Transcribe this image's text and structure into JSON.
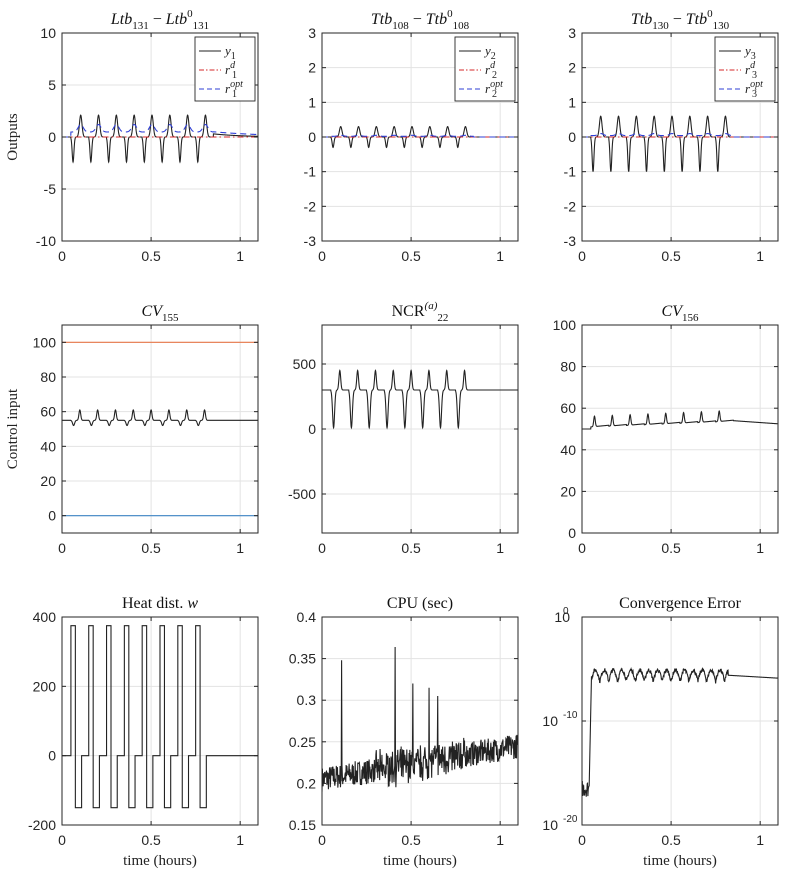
{
  "colors": {
    "black": "#222222",
    "red_dashdot": "#d62728",
    "blue_dashed": "#2f3fd6",
    "orange": "#e8784a",
    "steelblue": "#3f86c6",
    "grid": "#e3e3e3"
  },
  "chart_data": [
    {
      "id": "p1",
      "type": "line",
      "title": "Ltb131 − Ltb0131",
      "title_parts": [
        {
          "t": "Ltb",
          "i": true
        },
        {
          "t": "131",
          "sub": true
        },
        {
          "t": " − "
        },
        {
          "t": "Ltb",
          "i": true
        },
        {
          "t": "0",
          "sup": true
        },
        {
          "t": "131",
          "sub": true
        }
      ],
      "ylabel": "Outputs",
      "xlabel": "",
      "xlim": [
        0,
        1.1
      ],
      "ylim": [
        -10,
        10
      ],
      "yscale": "linear",
      "xticks": [
        0,
        0.5,
        1
      ],
      "xtick_labels": [
        "0",
        "0.5",
        "1"
      ],
      "yticks": [
        -10,
        -5,
        0,
        5,
        10
      ],
      "ytick_labels": [
        "-10",
        "-5",
        "0",
        "5",
        "10"
      ],
      "legend": {
        "position": "top-right",
        "entries": [
          {
            "label": "y1",
            "base": "y",
            "sub": "1",
            "series": "y1"
          },
          {
            "label": "r1d",
            "base": "r",
            "sub": "1",
            "sup": "d",
            "series": "rd"
          },
          {
            "label": "r1opt",
            "base": "r",
            "sub": "1",
            "sup": "opt",
            "series": "ropt"
          }
        ]
      },
      "series": [
        {
          "id": "y1",
          "name": "y1",
          "color": "black",
          "dash": "",
          "gen": "osc_y",
          "params": {
            "peak": 2.1,
            "trough": -2.4,
            "settle": 0.3
          }
        },
        {
          "id": "rd",
          "name": "r1d",
          "color": "red_dashdot",
          "dash": "6,3,1.5,3",
          "gen": "const",
          "params": {
            "value": 0
          }
        },
        {
          "id": "ropt",
          "name": "r1opt",
          "color": "blue_dashed",
          "dash": "6,4",
          "gen": "osc_ropt",
          "params": {
            "amp": 1.2,
            "settle": 0.5
          }
        }
      ]
    },
    {
      "id": "p2",
      "type": "line",
      "title": "Ttb108 − Ttb0108",
      "title_parts": [
        {
          "t": "Ttb",
          "i": true
        },
        {
          "t": "108",
          "sub": true
        },
        {
          "t": " − "
        },
        {
          "t": "Ttb",
          "i": true
        },
        {
          "t": "0",
          "sup": true
        },
        {
          "t": "108",
          "sub": true
        }
      ],
      "ylabel": "",
      "xlabel": "",
      "xlim": [
        0,
        1.1
      ],
      "ylim": [
        -3,
        3
      ],
      "yscale": "linear",
      "xticks": [
        0,
        0.5,
        1
      ],
      "xtick_labels": [
        "0",
        "0.5",
        "1"
      ],
      "yticks": [
        -3,
        -2,
        -1,
        0,
        1,
        2,
        3
      ],
      "ytick_labels": [
        "-3",
        "-2",
        "-1",
        "0",
        "1",
        "2",
        "3"
      ],
      "legend": {
        "position": "top-right",
        "entries": [
          {
            "label": "y2",
            "base": "y",
            "sub": "2",
            "series": "y2"
          },
          {
            "label": "r2d",
            "base": "r",
            "sub": "2",
            "sup": "d",
            "series": "rd"
          },
          {
            "label": "r2opt",
            "base": "r",
            "sub": "2",
            "sup": "opt",
            "series": "ropt"
          }
        ]
      },
      "series": [
        {
          "id": "y2",
          "name": "y2",
          "color": "black",
          "dash": "",
          "gen": "osc_y",
          "params": {
            "peak": 0.3,
            "trough": -0.3,
            "settle": 0.0
          }
        },
        {
          "id": "rd",
          "name": "r2d",
          "color": "red_dashdot",
          "dash": "6,3,1.5,3",
          "gen": "const",
          "params": {
            "value": 0
          }
        },
        {
          "id": "ropt",
          "name": "r2opt",
          "color": "blue_dashed",
          "dash": "6,4",
          "gen": "osc_ropt",
          "params": {
            "amp": 0.05,
            "settle": 0.0
          }
        }
      ]
    },
    {
      "id": "p3",
      "type": "line",
      "title": "Ttb130 − Ttb0130",
      "title_parts": [
        {
          "t": "Ttb",
          "i": true
        },
        {
          "t": "130",
          "sub": true
        },
        {
          "t": " − "
        },
        {
          "t": "Ttb",
          "i": true
        },
        {
          "t": "0",
          "sup": true
        },
        {
          "t": "130",
          "sub": true
        }
      ],
      "ylabel": "",
      "xlabel": "",
      "xlim": [
        0,
        1.1
      ],
      "ylim": [
        -3,
        3
      ],
      "yscale": "linear",
      "xticks": [
        0,
        0.5,
        1
      ],
      "xtick_labels": [
        "0",
        "0.5",
        "1"
      ],
      "yticks": [
        -3,
        -2,
        -1,
        0,
        1,
        2,
        3
      ],
      "ytick_labels": [
        "-3",
        "-2",
        "-1",
        "0",
        "1",
        "2",
        "3"
      ],
      "legend": {
        "position": "top-right",
        "entries": [
          {
            "label": "y3",
            "base": "y",
            "sub": "3",
            "series": "y3"
          },
          {
            "label": "r3d",
            "base": "r",
            "sub": "3",
            "sup": "d",
            "series": "rd"
          },
          {
            "label": "r3opt",
            "base": "r",
            "sub": "3",
            "sup": "opt",
            "series": "ropt"
          }
        ]
      },
      "series": [
        {
          "id": "y3",
          "name": "y3",
          "color": "black",
          "dash": "",
          "gen": "osc_y",
          "params": {
            "peak": 0.6,
            "trough": -1.0,
            "settle": 0.0
          }
        },
        {
          "id": "rd",
          "name": "r3d",
          "color": "red_dashdot",
          "dash": "6,3,1.5,3",
          "gen": "const",
          "params": {
            "value": 0
          }
        },
        {
          "id": "ropt",
          "name": "r3opt",
          "color": "blue_dashed",
          "dash": "6,4",
          "gen": "osc_ropt",
          "params": {
            "amp": 0.1,
            "settle": 0.0
          }
        }
      ]
    },
    {
      "id": "p4",
      "type": "line",
      "title": "CV155",
      "title_parts": [
        {
          "t": "CV",
          "i": true
        },
        {
          "t": "155",
          "sub": true
        }
      ],
      "ylabel": "Control input",
      "xlabel": "",
      "xlim": [
        0,
        1.1
      ],
      "ylim": [
        -10,
        110
      ],
      "yscale": "linear",
      "xticks": [
        0,
        0.5,
        1
      ],
      "xtick_labels": [
        "0",
        "0.5",
        "1"
      ],
      "yticks": [
        0,
        20,
        40,
        60,
        80,
        100
      ],
      "ytick_labels": [
        "0",
        "20",
        "40",
        "60",
        "80",
        "100"
      ],
      "legend": null,
      "series": [
        {
          "id": "ub",
          "name": "upper bound",
          "color": "orange",
          "dash": "",
          "gen": "const",
          "params": {
            "value": 100
          }
        },
        {
          "id": "lb",
          "name": "lower bound",
          "color": "steelblue",
          "dash": "",
          "gen": "const",
          "params": {
            "value": 0
          }
        },
        {
          "id": "u",
          "name": "CV155",
          "color": "black",
          "dash": "",
          "gen": "osc_u",
          "params": {
            "base": 55,
            "peak": 61,
            "trough": 52,
            "drift": 0
          }
        }
      ]
    },
    {
      "id": "p5",
      "type": "line",
      "title": "NCR(a)22",
      "title_parts": [
        {
          "t": "NCR"
        },
        {
          "t": "(a)",
          "sup": true,
          "i": true
        },
        {
          "t": "22",
          "sub": true
        }
      ],
      "ylabel": "",
      "xlabel": "",
      "xlim": [
        0,
        1.1
      ],
      "ylim": [
        -800,
        800
      ],
      "yscale": "linear",
      "xticks": [
        0,
        0.5,
        1
      ],
      "xtick_labels": [
        "0",
        "0.5",
        "1"
      ],
      "yticks": [
        -500,
        0,
        500
      ],
      "ytick_labels": [
        "-500",
        "0",
        "500"
      ],
      "legend": null,
      "series": [
        {
          "id": "u",
          "name": "NCR22",
          "color": "black",
          "dash": "",
          "gen": "osc_u",
          "params": {
            "base": 300,
            "peak": 450,
            "trough": 10,
            "drift": 0
          }
        }
      ]
    },
    {
      "id": "p6",
      "type": "line",
      "title": "CV156",
      "title_parts": [
        {
          "t": "CV",
          "i": true
        },
        {
          "t": "156",
          "sub": true
        }
      ],
      "ylabel": "",
      "xlabel": "",
      "xlim": [
        0,
        1.1
      ],
      "ylim": [
        0,
        100
      ],
      "yscale": "linear",
      "xticks": [
        0,
        0.5,
        1
      ],
      "xtick_labels": [
        "0",
        "0.5",
        "1"
      ],
      "yticks": [
        0,
        20,
        40,
        60,
        80,
        100
      ],
      "ytick_labels": [
        "0",
        "20",
        "40",
        "60",
        "80",
        "100"
      ],
      "legend": null,
      "series": [
        {
          "id": "ub",
          "name": "upper bound",
          "color": "orange",
          "dash": "",
          "gen": "const",
          "params": {
            "value": 100
          }
        },
        {
          "id": "lb",
          "name": "lower bound",
          "color": "steelblue",
          "dash": "",
          "gen": "const",
          "params": {
            "value": 0
          }
        },
        {
          "id": "u",
          "name": "CV156",
          "color": "black",
          "dash": "",
          "gen": "osc_u6",
          "params": {
            "base": 50,
            "peak": 56,
            "end": 52
          }
        }
      ]
    },
    {
      "id": "p7",
      "type": "line",
      "title": "Heat dist. w",
      "title_parts": [
        {
          "t": "Heat dist. "
        },
        {
          "t": "w",
          "i": true
        }
      ],
      "ylabel": "",
      "xlabel": "time (hours)",
      "xlim": [
        0,
        1.1
      ],
      "ylim": [
        -200,
        400
      ],
      "yscale": "linear",
      "xticks": [
        0,
        0.5,
        1
      ],
      "xtick_labels": [
        "0",
        "0.5",
        "1"
      ],
      "yticks": [
        -200,
        0,
        200,
        400
      ],
      "ytick_labels": [
        "-200",
        "0",
        "200",
        "400"
      ],
      "legend": null,
      "series": [
        {
          "id": "w",
          "name": "w",
          "color": "black",
          "dash": "",
          "gen": "square",
          "params": {
            "high": 375,
            "low": -150
          }
        }
      ]
    },
    {
      "id": "p8",
      "type": "line",
      "title": "CPU (sec)",
      "title_parts": [
        {
          "t": "CPU (sec)"
        }
      ],
      "ylabel": "",
      "xlabel": "time (hours)",
      "xlim": [
        0,
        1.1
      ],
      "ylim": [
        0.15,
        0.4
      ],
      "yscale": "linear",
      "xticks": [
        0,
        0.5,
        1
      ],
      "xtick_labels": [
        "0",
        "0.5",
        "1"
      ],
      "yticks": [
        0.15,
        0.2,
        0.25,
        0.3,
        0.35,
        0.4
      ],
      "ytick_labels": [
        "0.15",
        "0.2",
        "0.25",
        "0.3",
        "0.35",
        "0.4"
      ],
      "legend": null,
      "series": [
        {
          "id": "cpu",
          "name": "CPU time",
          "color": "black",
          "dash": "",
          "gen": "noise_cpu",
          "params": {
            "spikes": [
              [
                0.11,
                0.348
              ],
              [
                0.41,
                0.364
              ],
              [
                0.51,
                0.32
              ],
              [
                0.6,
                0.315
              ],
              [
                0.65,
                0.305
              ]
            ]
          }
        }
      ]
    },
    {
      "id": "p9",
      "type": "line",
      "title": "Convergence Error",
      "title_parts": [
        {
          "t": "Convergence Error"
        }
      ],
      "ylabel": "",
      "xlabel": "time (hours)",
      "xlim": [
        0,
        1.1
      ],
      "ylim": [
        -20,
        0
      ],
      "yscale": "log",
      "xticks": [
        0,
        0.5,
        1
      ],
      "xtick_labels": [
        "0",
        "0.5",
        "1"
      ],
      "yticks": [
        -20,
        -10,
        0
      ],
      "ytick_labels": [
        "10",
        "10",
        "10"
      ],
      "ytick_exponents": [
        "-20",
        "-10",
        "0"
      ],
      "legend": null,
      "series": [
        {
          "id": "err",
          "name": "convergence error",
          "color": "black",
          "dash": "",
          "gen": "conv_err",
          "params": {
            "low": -16.5,
            "high": -5.2
          }
        }
      ]
    }
  ]
}
